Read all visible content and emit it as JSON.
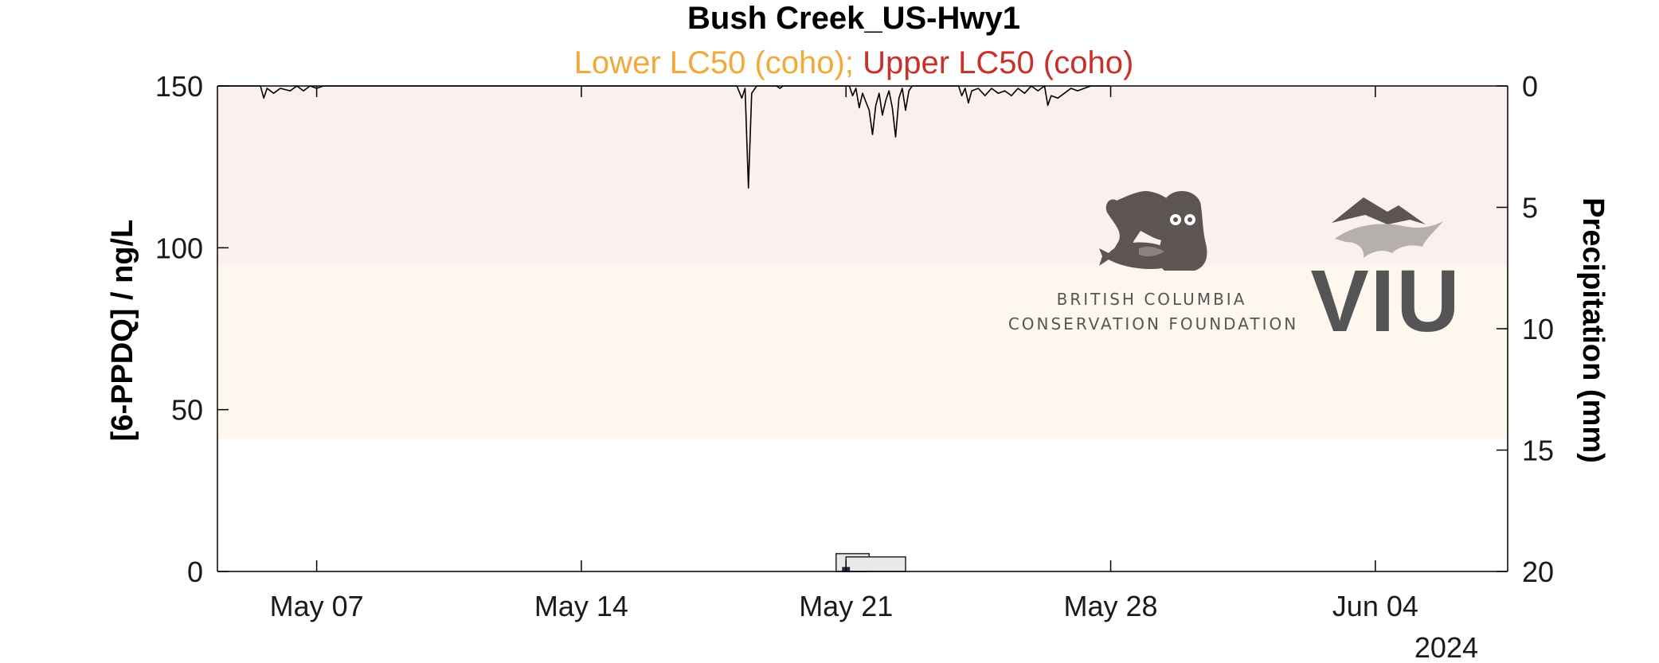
{
  "chart_data": {
    "type": "line",
    "title": "Bush Creek_US-Hwy1",
    "subtitle_parts": [
      {
        "text": "Lower LC50 (coho)",
        "color": "#f2a93b"
      },
      {
        "text": "; ",
        "color": "#f2a93b"
      },
      {
        "text": "Upper LC50 (coho)",
        "color": "#c8302a"
      }
    ],
    "ylabel_left": "[6-PPDQ] / ng/L",
    "ylabel_right": "Precipitation (mm)",
    "ylim_left": [
      0,
      150
    ],
    "ylim_right_reversed": [
      0,
      20
    ],
    "yticks_left": [
      0,
      50,
      100,
      150
    ],
    "yticks_right": [
      0,
      5,
      10,
      15,
      20
    ],
    "x_domain_days": [
      0,
      39
    ],
    "x_ticks": [
      {
        "day": 3,
        "label": "May 07"
      },
      {
        "day": 11,
        "label": "May 14"
      },
      {
        "day": 19,
        "label": "May 21"
      },
      {
        "day": 27,
        "label": "May 28"
      },
      {
        "day": 35,
        "label": "Jun 04"
      }
    ],
    "x_year_label": "2024",
    "bands": [
      {
        "name": "Lower LC50 (coho)",
        "from": 41,
        "to": 95,
        "color": "#fdf7ee"
      },
      {
        "name": "Upper LC50 (coho)",
        "from": 95,
        "to": 150,
        "color": "#fbeff0"
      }
    ],
    "precipitation": [
      [
        0,
        0
      ],
      [
        1.3,
        0
      ],
      [
        1.4,
        0.5
      ],
      [
        1.5,
        0.1
      ],
      [
        1.7,
        0.3
      ],
      [
        1.9,
        0.1
      ],
      [
        2.2,
        0.2
      ],
      [
        2.4,
        0
      ],
      [
        2.6,
        0.2
      ],
      [
        2.8,
        0
      ],
      [
        3.0,
        0.1
      ],
      [
        3.2,
        0
      ],
      [
        15.7,
        0
      ],
      [
        15.85,
        0.5
      ],
      [
        15.95,
        0.1
      ],
      [
        16.05,
        4.2
      ],
      [
        16.15,
        0.3
      ],
      [
        16.3,
        0
      ],
      [
        16.9,
        0
      ],
      [
        17.0,
        0.1
      ],
      [
        17.1,
        0
      ],
      [
        19.1,
        0
      ],
      [
        19.2,
        0.4
      ],
      [
        19.3,
        0.1
      ],
      [
        19.4,
        0.9
      ],
      [
        19.5,
        0.3
      ],
      [
        19.7,
        1.0
      ],
      [
        19.8,
        2.0
      ],
      [
        19.9,
        0.8
      ],
      [
        20.0,
        0.3
      ],
      [
        20.1,
        1.2
      ],
      [
        20.2,
        0.6
      ],
      [
        20.3,
        0.2
      ],
      [
        20.4,
        0.9
      ],
      [
        20.5,
        2.1
      ],
      [
        20.6,
        0.5
      ],
      [
        20.7,
        0.1
      ],
      [
        20.8,
        1.0
      ],
      [
        20.9,
        0.2
      ],
      [
        21.0,
        0
      ],
      [
        22.4,
        0
      ],
      [
        22.5,
        0.4
      ],
      [
        22.6,
        0.1
      ],
      [
        22.7,
        0.7
      ],
      [
        22.8,
        0.2
      ],
      [
        23.0,
        0.1
      ],
      [
        23.2,
        0.4
      ],
      [
        23.4,
        0.1
      ],
      [
        23.6,
        0.3
      ],
      [
        23.8,
        0.2
      ],
      [
        24.0,
        0.4
      ],
      [
        24.2,
        0.1
      ],
      [
        24.4,
        0.3
      ],
      [
        24.6,
        0
      ],
      [
        24.8,
        0.2
      ],
      [
        25.0,
        0
      ],
      [
        25.0,
        0
      ],
      [
        25.1,
        0.8
      ],
      [
        25.2,
        0.4
      ],
      [
        25.4,
        0.5
      ],
      [
        25.6,
        0.3
      ],
      [
        25.8,
        0.1
      ],
      [
        26.0,
        0.2
      ],
      [
        26.2,
        0.1
      ],
      [
        26.4,
        0
      ],
      [
        27.0,
        0
      ]
    ],
    "samples": [
      {
        "day": 18.7,
        "day_end": 19.7,
        "value": 5.5,
        "fill": "#e9e9e9"
      },
      {
        "day": 19.0,
        "day_end": 20.8,
        "value": 4.5,
        "fill": "#e9e9e9"
      },
      {
        "day": 18.9,
        "day_end": 19.1,
        "value": 1.2,
        "fill": "#1f2f5a"
      }
    ],
    "grid": false,
    "legend": "none"
  },
  "logos": {
    "bccf": {
      "line1": "BRITISH COLUMBIA",
      "line2": "CONSERVATION FOUNDATION",
      "icon": "bear-owl-salmon-icon"
    },
    "viu": {
      "text": "VIU",
      "icon": "mountain-leaf-icon"
    }
  },
  "colors": {
    "axis": "#000000",
    "precip_line": "#000000",
    "logo_gray": "#5c5553"
  }
}
